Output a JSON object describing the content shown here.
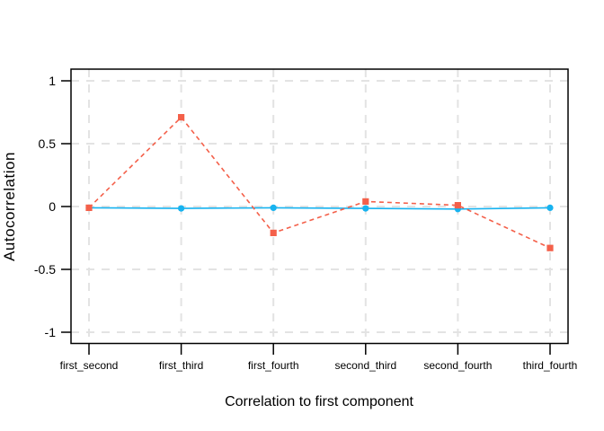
{
  "chart_data": {
    "type": "line",
    "title": "",
    "xlabel": "Correlation to first component",
    "ylabel": "Autocorrelation",
    "categories": [
      "first_second",
      "first_third",
      "first_fourth",
      "second_third",
      "second_fourth",
      "third_fourth"
    ],
    "series": [
      {
        "name": "blue_solid_circles",
        "color": "#17b3f0",
        "line_style": "solid",
        "marker": "circle",
        "values": [
          -0.01,
          -0.015,
          -0.01,
          -0.015,
          -0.02,
          -0.01
        ]
      },
      {
        "name": "red_dashed_squares",
        "color": "#f4604a",
        "line_style": "dashed",
        "marker": "square",
        "values": [
          -0.01,
          0.71,
          -0.21,
          0.04,
          0.01,
          -0.33
        ]
      }
    ],
    "ylim": [
      -1.09,
      1.09
    ],
    "y_ticks": [
      1,
      0.5,
      0,
      -0.5,
      -1
    ],
    "y_tick_labels": [
      "1",
      "0.5",
      "0",
      "-0.5",
      "-1"
    ],
    "grid": {
      "style": "dashed",
      "color": "#e3e3e3",
      "horizontal": true,
      "vertical": true
    },
    "legend": "none",
    "panel_border_color": "#000000",
    "tick_color": "#000000",
    "background": "#ffffff"
  }
}
